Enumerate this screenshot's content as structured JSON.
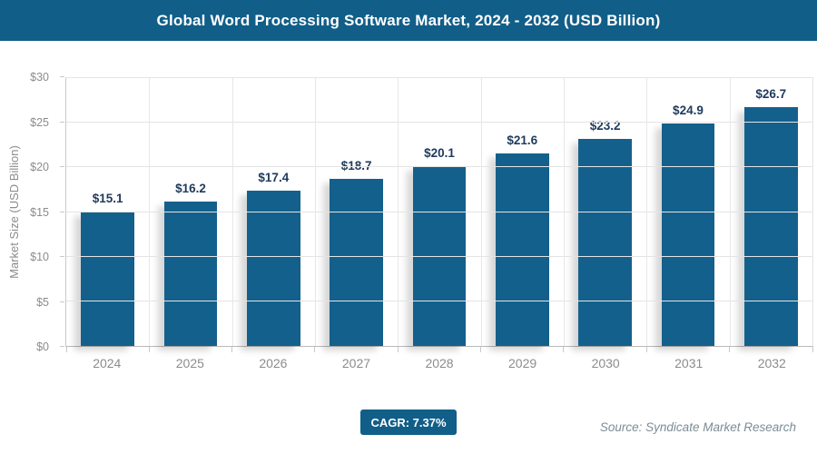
{
  "title": "Global Word Processing Software Market, 2024 - 2032 (USD Billion)",
  "colors": {
    "brand": "#115E88",
    "bar": "#14608C",
    "value_label": "#1F3A5C",
    "axis_text": "#8C8C8C",
    "gridline": "#E4E4E4",
    "axis_line": "#C9C9C9",
    "source_text": "#7C8C96"
  },
  "chart_data": {
    "type": "bar",
    "title": "Global Word Processing Software Market, 2024 - 2032 (USD Billion)",
    "categories": [
      "2024",
      "2025",
      "2026",
      "2027",
      "2028",
      "2029",
      "2030",
      "2031",
      "2032"
    ],
    "values": [
      15.1,
      16.2,
      17.4,
      18.7,
      20.1,
      21.6,
      23.2,
      24.9,
      26.7
    ],
    "value_label_prefix": "$",
    "xlabel": "",
    "ylabel": "Market Size (USD Billion)",
    "ylim": [
      0,
      30
    ],
    "ytick_step": 5,
    "ytick_labels": [
      "$0",
      "$5",
      "$10",
      "$15",
      "$20",
      "$25",
      "$30"
    ],
    "grid": true,
    "legend": false,
    "bar_color": "#14608C"
  },
  "footer": {
    "cagr_label": "CAGR: 7.37%",
    "source": "Source: Syndicate Market Research"
  }
}
